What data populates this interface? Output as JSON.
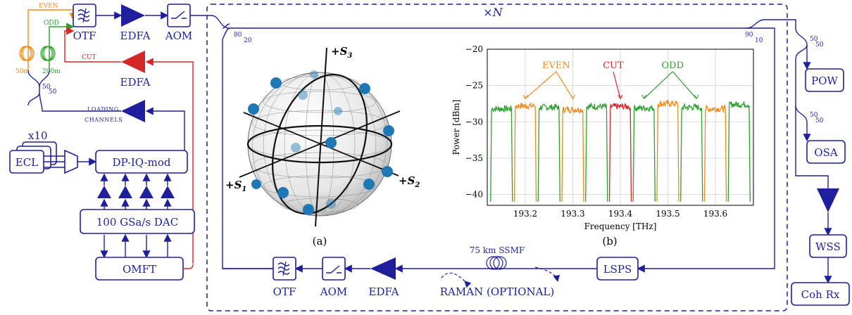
{
  "colors": {
    "blue": "#1f1f9e",
    "orange": "#f28a1a",
    "green": "#2ca02c",
    "red": "#d62728",
    "sphere_dot": "#1f77b4"
  },
  "blocks": {
    "otf_top": "OTF",
    "edfa_top": "EDFA",
    "aom_top": "AOM",
    "edfa_red": "EDFA",
    "ecl": "ECL",
    "x10": "x10",
    "dp_iq": "DP-IQ-mod",
    "dac": "100 GSa/s DAC",
    "omft": "OMFT",
    "pow": "POW",
    "osa": "OSA",
    "wss": "WSS",
    "cohrx": "Coh Rx",
    "lsps": "LSPS",
    "otf_bot": "OTF",
    "aom_bot": "AOM",
    "edfa_bot": "EDFA"
  },
  "labels": {
    "even": "EVEN",
    "odd": "ODD",
    "cut": "CUT",
    "loading1": "LOADING",
    "loading2": "CHANNELS",
    "len50": "50m",
    "len200": "200m",
    "xN": "×N",
    "sp_80": "80",
    "sp_20": "20",
    "sp_90": "90",
    "sp_10": "10",
    "sp_50a_top": "50",
    "sp_50a_bot": "50",
    "sp_50b_top": "50",
    "sp_50b_bot": "50",
    "sp_50c_top": "50",
    "sp_50c_bot": "50",
    "ssmf": "75 km SSMF",
    "raman": "RAMAN (OPTIONAL)",
    "panel_a": "(a)",
    "panel_b": "(b)"
  },
  "sphere": {
    "s1": "+S",
    "s1_sub": "1",
    "s2": "+S",
    "s2_sub": "2",
    "s3": "+S",
    "s3_sub": "3"
  },
  "chart_data": {
    "type": "line",
    "xlabel": "Frequency [THz]",
    "ylabel": "Power [dBm]",
    "xlim": [
      193.12,
      193.68
    ],
    "ylim": [
      -41.5,
      -20
    ],
    "x_ticks": [
      "193.2",
      "193.3",
      "193.4",
      "193.5",
      "193.6"
    ],
    "y_ticks": [
      "−20",
      "−25",
      "−30",
      "−35",
      "−40"
    ],
    "grid": true,
    "channel_spacing_thz": 0.05,
    "channels": [
      {
        "center": 193.15,
        "group": "ODD",
        "level": -28.2
      },
      {
        "center": 193.2,
        "group": "EVEN",
        "level": -27.8
      },
      {
        "center": 193.25,
        "group": "ODD",
        "level": -28.0
      },
      {
        "center": 193.3,
        "group": "EVEN",
        "level": -28.3
      },
      {
        "center": 193.35,
        "group": "ODD",
        "level": -27.9
      },
      {
        "center": 193.4,
        "group": "CUT",
        "level": -27.9
      },
      {
        "center": 193.45,
        "group": "ODD",
        "level": -28.1
      },
      {
        "center": 193.5,
        "group": "EVEN",
        "level": -27.5
      },
      {
        "center": 193.55,
        "group": "ODD",
        "level": -28.0
      },
      {
        "center": 193.6,
        "group": "EVEN",
        "level": -28.2
      },
      {
        "center": 193.65,
        "group": "ODD",
        "level": -27.6
      }
    ],
    "annotations": [
      {
        "text": "EVEN",
        "group": "EVEN"
      },
      {
        "text": "CUT",
        "group": "CUT"
      },
      {
        "text": "ODD",
        "group": "ODD"
      }
    ]
  }
}
